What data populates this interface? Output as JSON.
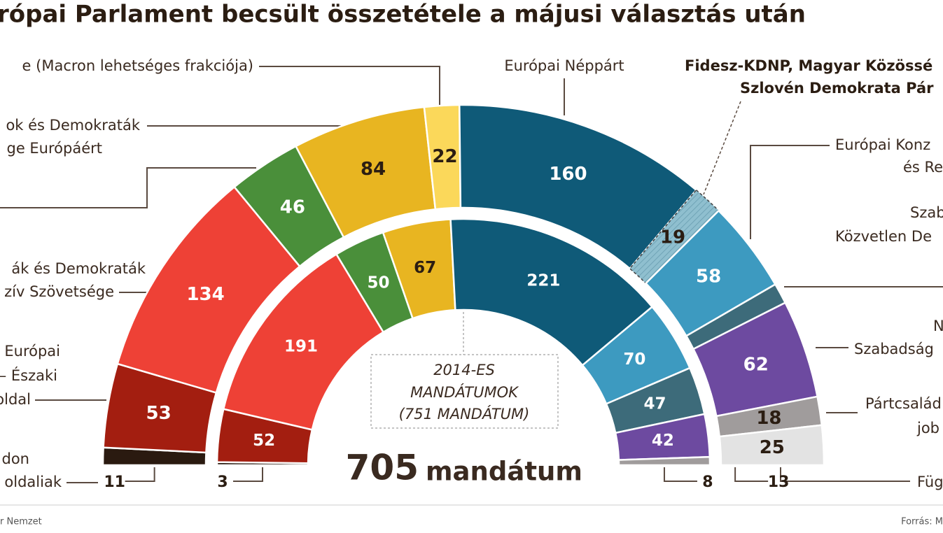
{
  "chart_data": {
    "type": "parliament",
    "title": "rópai Parlament becsült összetétele a májusi választás után",
    "rings": [
      {
        "values": [
          11,
          53,
          134,
          46,
          84,
          22,
          160,
          19,
          58,
          13,
          62,
          18,
          25
        ],
        "colors": [
          "#2a1a10",
          "#a31e10",
          "#ee4136",
          "#4a8f3a",
          "#e8b521",
          "#fbd85a",
          "#0f5a78",
          "#8fbfcf",
          "#3d9ac0",
          "#3d6b7a",
          "#6d4aa0",
          "#a09c9c",
          "#e3e3e3"
        ],
        "hatched": [
          7
        ]
      },
      {
        "values": [
          3,
          52,
          191,
          50,
          67,
          221,
          70,
          47,
          42,
          8
        ],
        "colors": [
          "#2a1a10",
          "#a31e10",
          "#ee4136",
          "#4a8f3a",
          "#e8b521",
          "#0f5a78",
          "#3d9ac0",
          "#3d6b7a",
          "#6d4aa0",
          "#a09c9c"
        ]
      }
    ],
    "total": 705,
    "total_label": "mandátum",
    "inner_caption": [
      "2014-ES",
      "MANDÁTUMOK",
      "(751 MANDÁTUM)"
    ]
  },
  "annotations": [
    [
      "e (Macron lehetséges frakciója)"
    ],
    [
      "ok és Demokraták",
      "ge Európáért"
    ],
    [
      "ák és Demokraták",
      "zív Szövetsége"
    ],
    [
      "Európai",
      "– Északi",
      "oldal"
    ],
    [
      "don",
      "oldaliak"
    ],
    [
      "Európai Néppárt"
    ],
    [
      "Fidesz-KDNP, Magyar Közössé",
      "Szlovén Demokrata Pár"
    ],
    [
      "Európai Konz",
      "és Re"
    ],
    [
      "Szab",
      "Közvetlen De"
    ],
    [
      "N",
      "Szabadság"
    ],
    [
      "Pártcsalád",
      "job"
    ],
    [
      "Füg"
    ]
  ],
  "footer": {
    "left": "r Nemzet",
    "right": "Forrás: M"
  }
}
